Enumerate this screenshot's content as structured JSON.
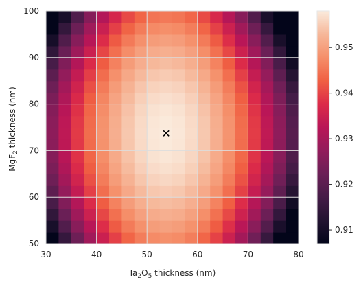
{
  "chart_data": {
    "type": "heatmap",
    "title": "",
    "xlabel": {
      "pre": "Ta",
      "sub1": "2",
      "mid": "O",
      "sub2": "5",
      "post": " thickness (nm)"
    },
    "ylabel": {
      "pre": "MgF",
      "sub": "2",
      "post": " thickness (nm)"
    },
    "xlim": [
      30,
      80
    ],
    "ylim": [
      50,
      100
    ],
    "xticks": [
      "30",
      "40",
      "50",
      "60",
      "70",
      "80"
    ],
    "yticks": [
      "50",
      "60",
      "70",
      "80",
      "90",
      "100"
    ],
    "grid": true,
    "grid_cells": {
      "nx": 20,
      "ny": 20
    },
    "colorbar": {
      "min": 0.907,
      "max": 0.958,
      "ticks": [
        "0.91",
        "0.92",
        "0.93",
        "0.94",
        "0.95"
      ],
      "colormap": "rocket"
    },
    "optimum_marker": {
      "x": 53.8,
      "y": 73.7,
      "symbol": "x"
    },
    "peak_value": 0.958
  }
}
